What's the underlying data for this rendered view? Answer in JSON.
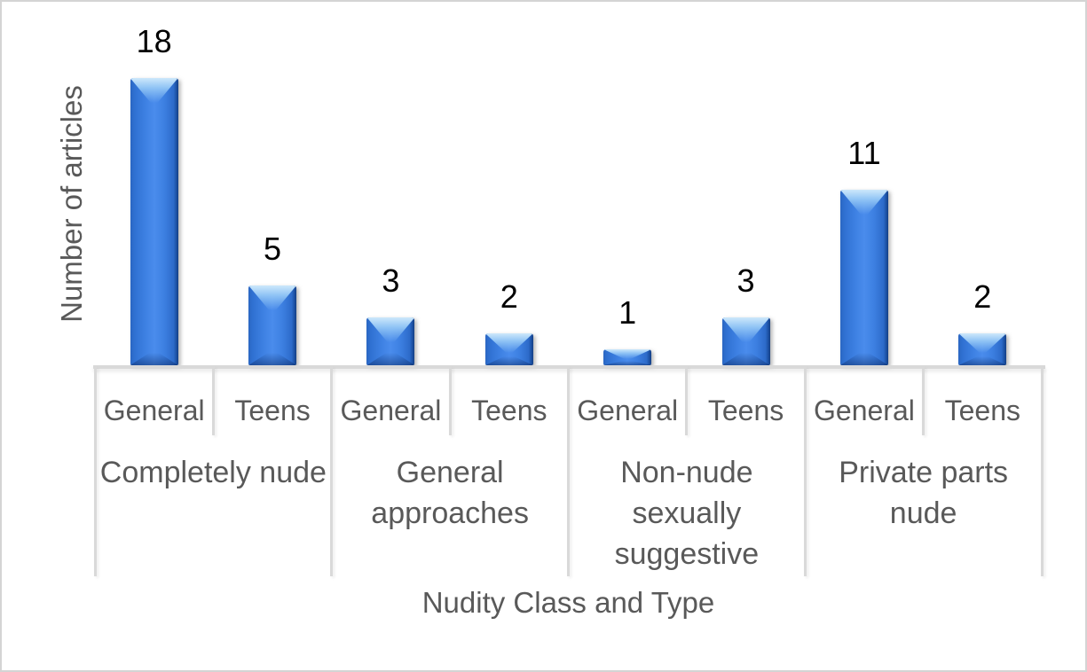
{
  "chart_data": {
    "type": "bar",
    "title": "",
    "xlabel": "Nudity Class and Type",
    "ylabel": "Number of articles",
    "ylim": [
      0,
      20
    ],
    "grid": false,
    "legend": false,
    "y_axis_ticks_visible": false,
    "data_labels_visible": true,
    "categories": [
      "General",
      "Teens"
    ],
    "groups": [
      {
        "label": "Completely nude",
        "lines": [
          "Completely nude"
        ],
        "categories": [
          "General",
          "Teens"
        ],
        "values": [
          18,
          5
        ]
      },
      {
        "label": "General approaches",
        "lines": [
          "General",
          "approaches"
        ],
        "categories": [
          "General",
          "Teens"
        ],
        "values": [
          3,
          2
        ]
      },
      {
        "label": "Non-nude sexually suggestive",
        "lines": [
          "Non-nude",
          "sexually",
          "suggestive"
        ],
        "categories": [
          "General",
          "Teens"
        ],
        "values": [
          1,
          3
        ]
      },
      {
        "label": "Private parts nude",
        "lines": [
          "Private parts",
          "nude"
        ],
        "categories": [
          "General",
          "Teens"
        ],
        "values": [
          11,
          2
        ]
      }
    ],
    "colors": {
      "bar_body": "#3d80e2",
      "bar_edge_dark": "#163f82",
      "bar_highlight": "#cde8fb",
      "axis_line": "#d9d9d9",
      "axis_text": "#595959",
      "value_label_text": "#000000",
      "figure_border": "#d4d4d4",
      "background": "#ffffff"
    }
  }
}
